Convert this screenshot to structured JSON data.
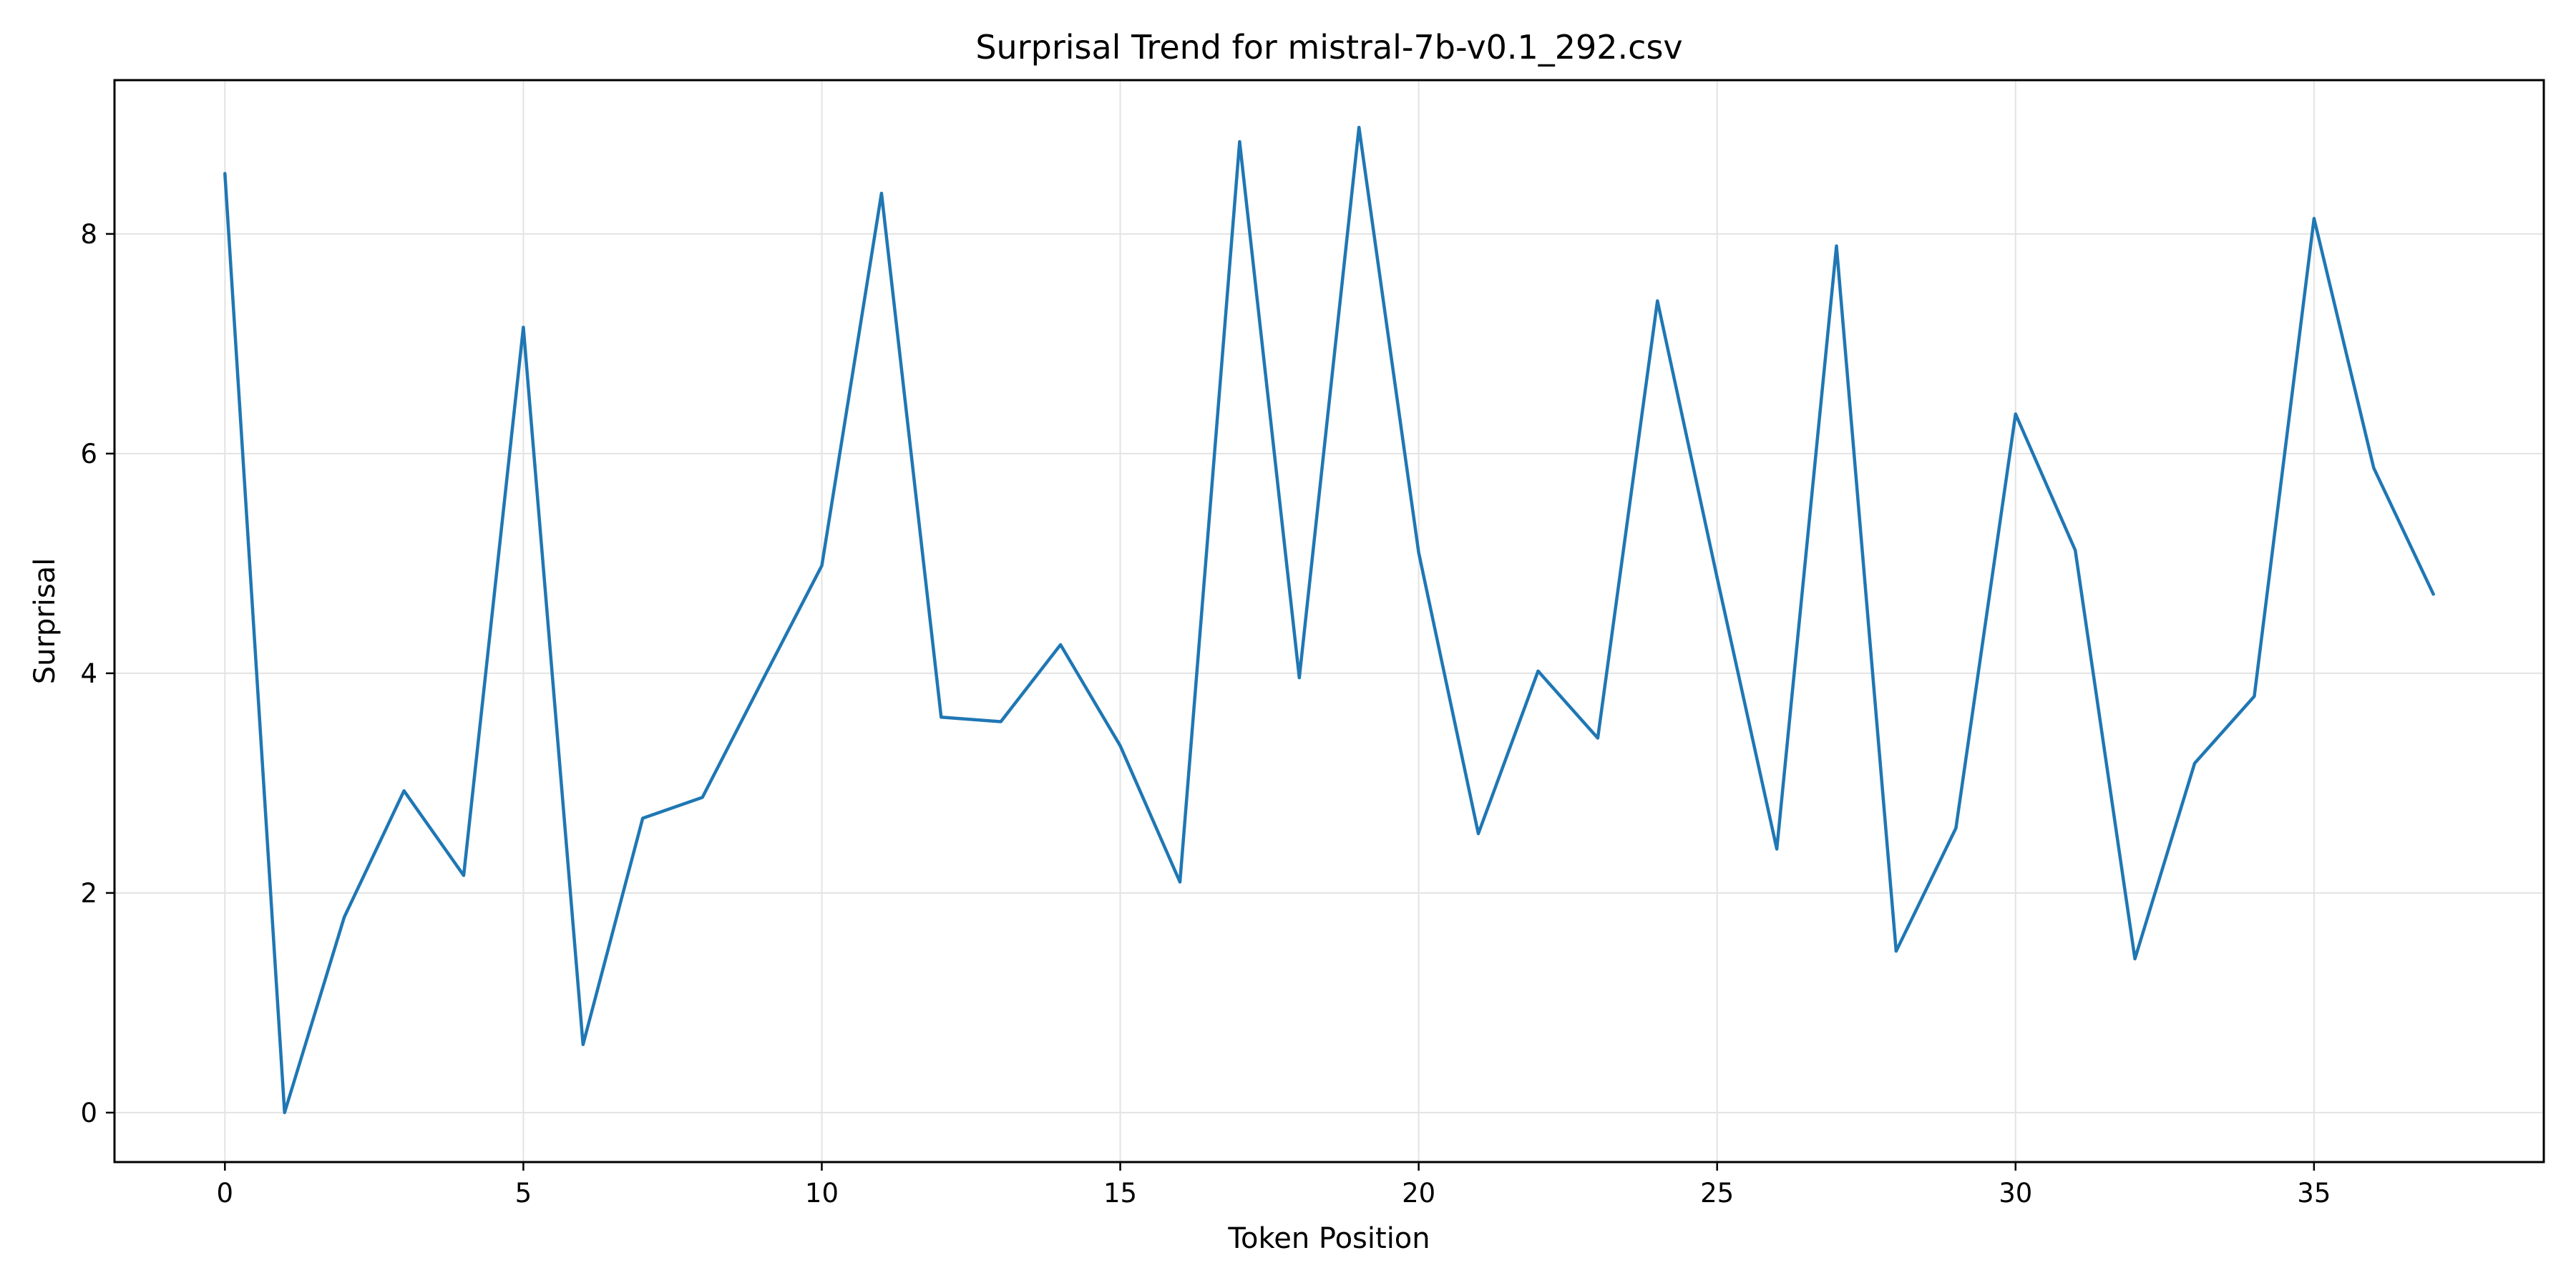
{
  "chart_data": {
    "type": "line",
    "title": "Surprisal Trend for mistral-7b-v0.1_292.csv",
    "xlabel": "Token Position",
    "ylabel": "Surprisal",
    "xlim": [
      -1.85,
      38.85
    ],
    "ylim": [
      -0.45,
      9.4
    ],
    "x_ticks": [
      0,
      5,
      10,
      15,
      20,
      25,
      30,
      35
    ],
    "y_ticks": [
      0,
      2,
      4,
      6,
      8
    ],
    "grid": true,
    "series": [
      {
        "color": "#1f77b4",
        "x": [
          0,
          1,
          2,
          3,
          4,
          5,
          6,
          7,
          8,
          9,
          10,
          11,
          12,
          13,
          14,
          15,
          16,
          17,
          18,
          19,
          20,
          21,
          22,
          23,
          24,
          25,
          26,
          27,
          28,
          29,
          30,
          31,
          32,
          33,
          34,
          35,
          36,
          37
        ],
        "y": [
          8.55,
          0.0,
          1.78,
          2.93,
          2.16,
          7.15,
          0.62,
          2.68,
          2.87,
          3.93,
          4.98,
          8.37,
          3.6,
          3.56,
          4.26,
          3.34,
          2.1,
          8.84,
          3.96,
          8.97,
          5.1,
          2.54,
          4.02,
          3.41,
          7.39,
          4.87,
          2.4,
          7.89,
          1.47,
          2.59,
          6.36,
          5.12,
          1.4,
          3.18,
          3.79,
          8.14,
          5.87,
          4.72
        ]
      }
    ]
  }
}
